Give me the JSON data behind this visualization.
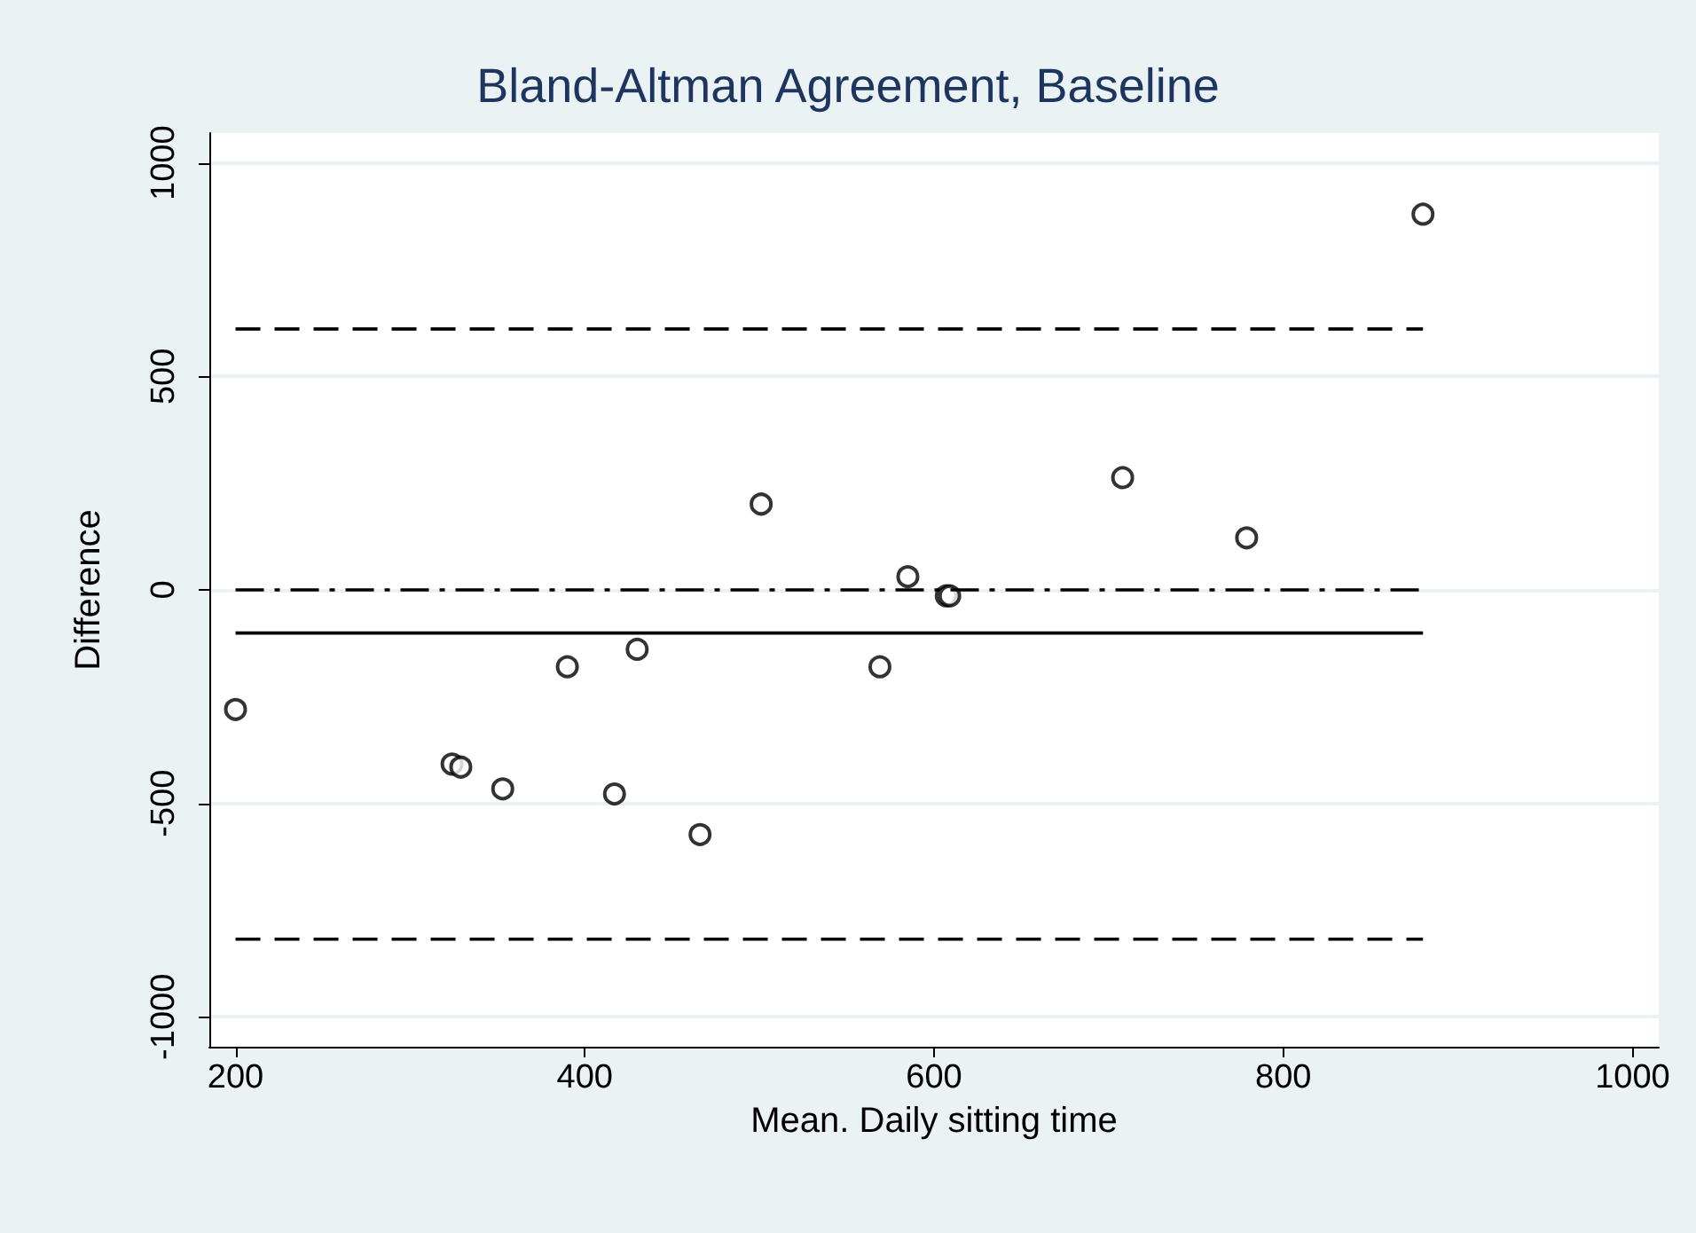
{
  "chart_data": {
    "type": "scatter",
    "title": "Bland-Altman Agreement, Baseline",
    "xlabel": "Mean. Daily sitting time",
    "ylabel": "Difference",
    "xlim": [
      185,
      1015
    ],
    "ylim": [
      -1070,
      1070
    ],
    "xticks": [
      200,
      400,
      600,
      800,
      1000
    ],
    "yticks": [
      -1000,
      -500,
      0,
      500,
      1000
    ],
    "grid": "y",
    "series": [
      {
        "color": "#000000",
        "marker": "circle",
        "x": [
          200,
          324,
          329,
          353,
          390,
          417,
          430,
          466,
          501,
          569,
          585,
          607,
          609,
          708,
          779,
          880
        ],
        "values": [
          -280,
          -408,
          -415,
          -466,
          -180,
          -478,
          -139,
          -573,
          201,
          -180,
          31,
          -14,
          -14,
          263,
          122,
          880
        ]
      },
      {
        "type": "line",
        "marker": "none",
        "color": "#000000",
        "line_style": "dashed",
        "x": [
          200,
          880
        ],
        "values": [
          611,
          611
        ]
      },
      {
        "type": "line",
        "marker": "none",
        "color": "#000000",
        "line_style": "dashed",
        "x": [
          200,
          880
        ],
        "values": [
          -818,
          -818
        ]
      },
      {
        "type": "line",
        "marker": "none",
        "color": "#000000",
        "line_style": "dashdot",
        "x": [
          200,
          880
        ],
        "values": [
          0,
          0
        ]
      },
      {
        "type": "line",
        "marker": "none",
        "color": "#000000",
        "line_style": "solid",
        "x": [
          200,
          880
        ],
        "values": [
          -101,
          -101
        ]
      }
    ]
  }
}
